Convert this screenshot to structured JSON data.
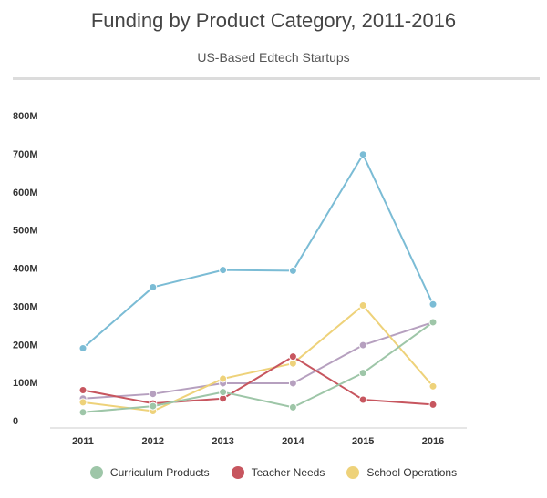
{
  "chart_data": {
    "type": "line",
    "title": "Funding by Product Category, 2011-2016",
    "subtitle": "US-Based Edtech Startups",
    "x": [
      "2011",
      "2012",
      "2013",
      "2014",
      "2015",
      "2016"
    ],
    "yticks": [
      "0",
      "100M",
      "200M",
      "300M",
      "400M",
      "500M",
      "600M",
      "700M",
      "800M"
    ],
    "ylim": [
      0,
      800
    ],
    "grid": false,
    "legend_position": "bottom",
    "series": [
      {
        "values": [
          190,
          350,
          395,
          393,
          698,
          305
        ],
        "color": "#7bbcd5"
      },
      {
        "values": [
          58,
          70,
          98,
          98,
          198,
          258
        ],
        "color": "#b6a0bf"
      },
      {
        "values": [
          48,
          25,
          110,
          150,
          302,
          90
        ],
        "color": "#eed27a"
      },
      {
        "values": [
          80,
          45,
          58,
          168,
          55,
          42
        ],
        "color": "#c7565f"
      },
      {
        "name": "Curriculum Products",
        "values": [
          22,
          38,
          75,
          35,
          125,
          258
        ],
        "color": "#9ec6a8"
      }
    ],
    "legend": [
      {
        "name": "Curriculum Products",
        "color": "#9ec6a8"
      },
      {
        "name": "Teacher Needs",
        "color": "#c7565f"
      },
      {
        "name": "School Operations",
        "color": "#eed27a"
      }
    ]
  }
}
